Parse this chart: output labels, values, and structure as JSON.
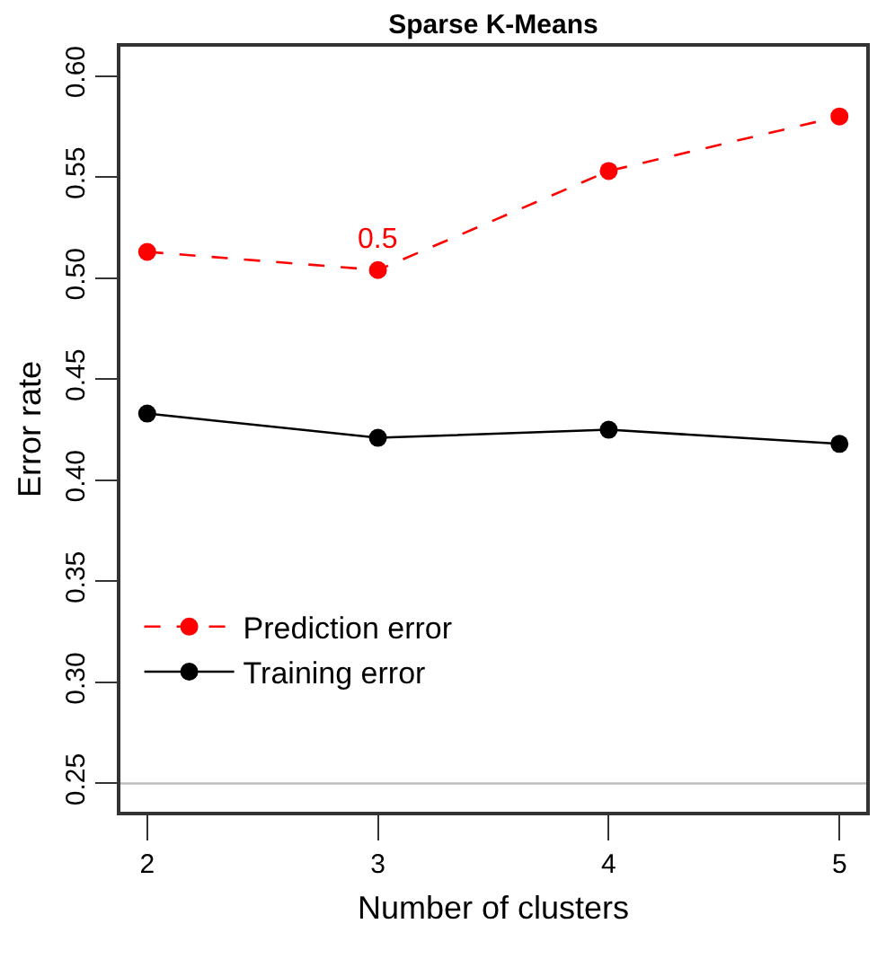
{
  "chart_data": {
    "type": "line",
    "title": "Sparse K-Means",
    "xlabel": "Number of clusters",
    "ylabel": "Error rate",
    "x": [
      2,
      3,
      4,
      5
    ],
    "series": [
      {
        "name": "Prediction error",
        "color": "#ff0000",
        "values": [
          0.513,
          0.504,
          0.553,
          0.58
        ],
        "line_style": "dashed"
      },
      {
        "name": "Training error",
        "color": "#000000",
        "values": [
          0.433,
          0.421,
          0.425,
          0.418
        ],
        "line_style": "solid"
      }
    ],
    "marker": "circle",
    "xlim": [
      1.884,
      5.116
    ],
    "xticks": [
      2,
      3,
      4,
      5
    ],
    "ylim": [
      0.236,
      0.6145
    ],
    "yticks": [
      {
        "value": 0.25,
        "label": "0.25"
      },
      {
        "value": 0.3,
        "label": "0.30"
      },
      {
        "value": 0.35,
        "label": "0.35"
      },
      {
        "value": 0.4,
        "label": "0.40"
      },
      {
        "value": 0.45,
        "label": "0.45"
      },
      {
        "value": 0.5,
        "label": "0.50"
      },
      {
        "value": 0.55,
        "label": "0.55"
      },
      {
        "value": 0.6,
        "label": "0.60"
      }
    ],
    "ref_lines": [
      {
        "axis": "y",
        "value": 0.25,
        "color": "#bebebe"
      }
    ],
    "annotations": [
      {
        "text": "0.5",
        "x": 3,
        "y": 0.504
      }
    ],
    "grid": false,
    "legend": "bottom left"
  }
}
